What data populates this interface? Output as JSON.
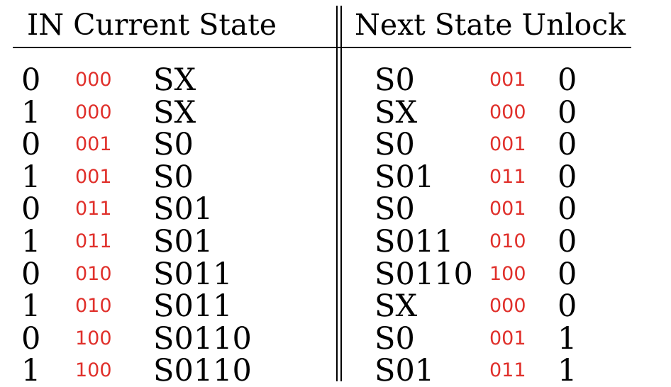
{
  "header": {
    "left": "IN Current State",
    "right": "Next State Unlock"
  },
  "colors": {
    "code_text": "#e0302b",
    "text": "#000000",
    "background": "#ffffff"
  },
  "rows": [
    {
      "in": "0",
      "current_code": "000",
      "current_state": "SX",
      "next_state": "S0",
      "next_code": "001",
      "unlock": "0"
    },
    {
      "in": "1",
      "current_code": "000",
      "current_state": "SX",
      "next_state": "SX",
      "next_code": "000",
      "unlock": "0"
    },
    {
      "in": "0",
      "current_code": "001",
      "current_state": "S0",
      "next_state": "S0",
      "next_code": "001",
      "unlock": "0"
    },
    {
      "in": "1",
      "current_code": "001",
      "current_state": "S0",
      "next_state": "S01",
      "next_code": "011",
      "unlock": "0"
    },
    {
      "in": "0",
      "current_code": "011",
      "current_state": "S01",
      "next_state": "S0",
      "next_code": "001",
      "unlock": "0"
    },
    {
      "in": "1",
      "current_code": "011",
      "current_state": "S01",
      "next_state": "S011",
      "next_code": "010",
      "unlock": "0"
    },
    {
      "in": "0",
      "current_code": "010",
      "current_state": "S011",
      "next_state": "S0110",
      "next_code": "100",
      "unlock": "0"
    },
    {
      "in": "1",
      "current_code": "010",
      "current_state": "S011",
      "next_state": "SX",
      "next_code": "000",
      "unlock": "0"
    },
    {
      "in": "0",
      "current_code": "100",
      "current_state": "S0110",
      "next_state": "S0",
      "next_code": "001",
      "unlock": "1"
    },
    {
      "in": "1",
      "current_code": "100",
      "current_state": "S0110",
      "next_state": "S01",
      "next_code": "011",
      "unlock": "1"
    }
  ]
}
